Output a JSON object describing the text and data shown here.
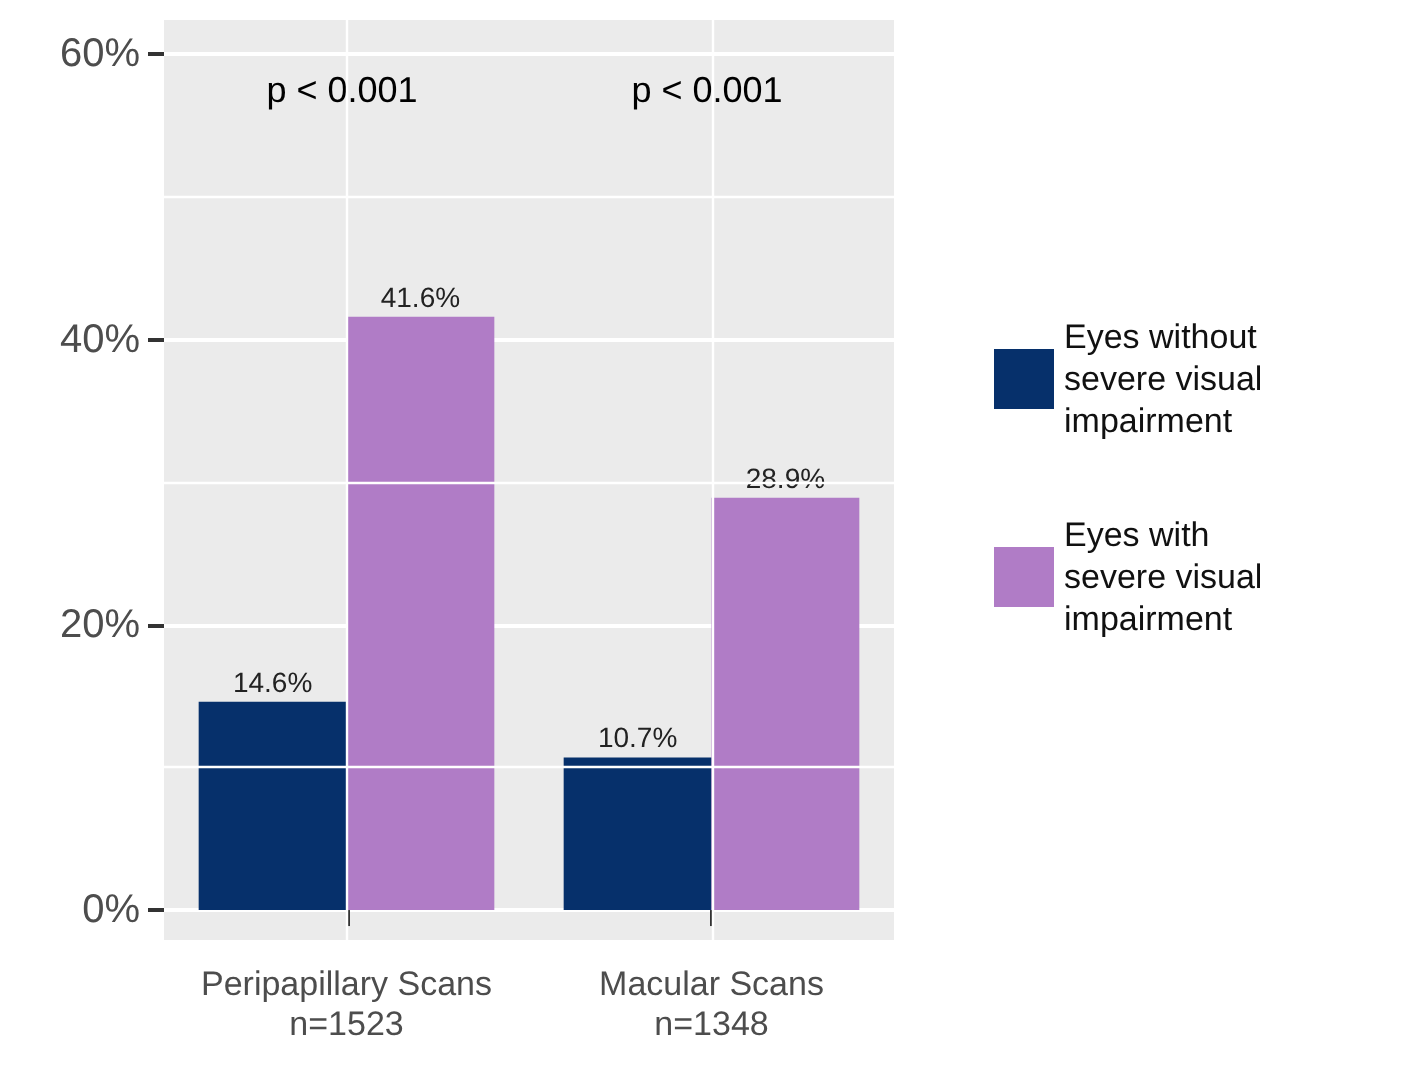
{
  "chart_data": {
    "type": "bar",
    "categories": [
      "Peripapillary Scans\nn=1523",
      "Macular Scans\nn=1348"
    ],
    "series": [
      {
        "name": "Eyes without\nsevere visual\nimpairment",
        "color": "#06306b",
        "values": [
          14.6,
          10.7
        ],
        "value_labels": [
          "14.6%",
          "10.7%"
        ]
      },
      {
        "name": "Eyes with\nsevere visual\nimpairment",
        "color": "#b07cc6",
        "values": [
          41.6,
          28.9
        ],
        "value_labels": [
          "41.6%",
          "28.9%"
        ]
      }
    ],
    "ylim": [
      -2.1,
      62.4
    ],
    "yticks": [
      {
        "value": 0,
        "label": "0%"
      },
      {
        "value": 20,
        "label": "20%"
      },
      {
        "value": 40,
        "label": "40%"
      },
      {
        "value": 60,
        "label": "60%"
      }
    ],
    "annotations": [
      "p < 0.001",
      "p < 0.001"
    ],
    "grid": true,
    "legend": "right"
  }
}
